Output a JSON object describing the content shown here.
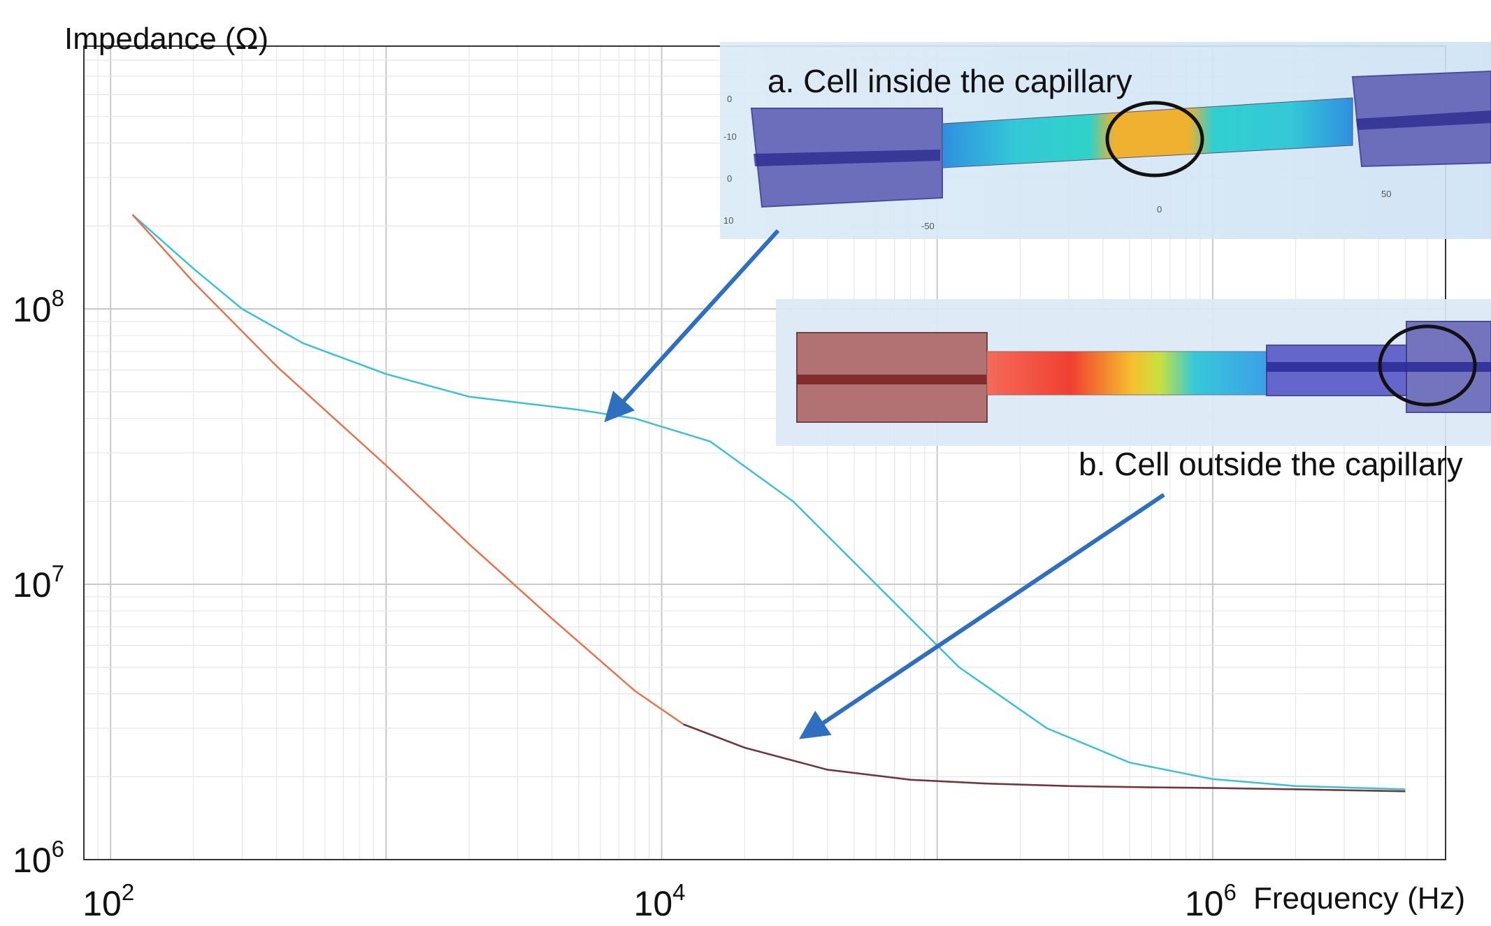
{
  "chart_data": {
    "type": "line",
    "title": "",
    "xlabel": "Frequency (Hz)",
    "ylabel": "Impedance (Ω)",
    "xscale": "log",
    "yscale": "log",
    "xlim": [
      80,
      7000000
    ],
    "ylim": [
      1000000,
      900000000
    ],
    "x_ticks": [
      {
        "value": 100,
        "base": "10",
        "exp": "2"
      },
      {
        "value": 10000,
        "base": "10",
        "exp": "4"
      },
      {
        "value": 1000000,
        "base": "10",
        "exp": "6"
      }
    ],
    "y_ticks": [
      {
        "value": 1000000,
        "base": "10",
        "exp": "6"
      },
      {
        "value": 10000000,
        "base": "10",
        "exp": "7"
      },
      {
        "value": 100000000,
        "base": "10",
        "exp": "8"
      }
    ],
    "grid": true,
    "series": [
      {
        "name": "Cell inside the capillary",
        "color": "#3cc0d8",
        "x": [
          120,
          200,
          300,
          500,
          1000,
          2000,
          5000,
          8000,
          15000,
          30000,
          60000,
          120000,
          250000,
          500000,
          1000000,
          2000000,
          5000000
        ],
        "y": [
          220000000,
          140000000,
          100000000,
          75000000,
          58000000,
          48000000,
          43000000,
          40000000,
          33000000,
          20000000,
          10000000,
          5000000,
          3000000,
          2250000,
          1960000,
          1850000,
          1800000
        ]
      },
      {
        "name": "Cell outside the capillary",
        "color": "#e8724a",
        "x": [
          120,
          200,
          400,
          1000,
          2000,
          4000,
          8000,
          12000,
          20000,
          40000,
          80000,
          150000,
          300000,
          600000,
          1000000,
          2000000,
          5000000
        ],
        "y": [
          220000000,
          125000000,
          62000000,
          27000000,
          14000000,
          7500000,
          4100000,
          3100000,
          2550000,
          2120000,
          1950000,
          1890000,
          1850000,
          1830000,
          1820000,
          1800000,
          1770000
        ]
      }
    ],
    "annotations": [
      {
        "text": "a. Cell inside the capillary",
        "points_to_series": "Cell inside the capillary",
        "arrow_color": "#2f6fbf"
      },
      {
        "text": "b. Cell outside the capillary",
        "points_to_series": "Cell outside the capillary",
        "arrow_color": "#2f6fbf"
      }
    ]
  }
}
